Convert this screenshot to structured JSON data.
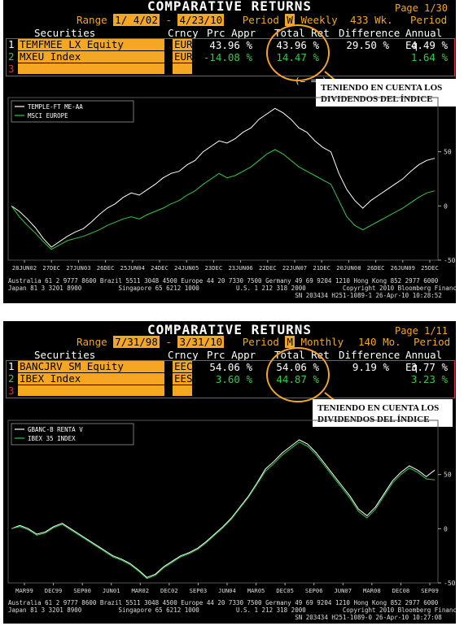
{
  "panels": [
    {
      "title": "COMPARATIVE RETURNS",
      "page": "Page 1/30",
      "range_label": "Range",
      "range_start": "1/ 4/02",
      "range_sep": "-",
      "range_end": "4/23/10",
      "period_label": "Period",
      "period_code": "W",
      "period_name": "Weekly",
      "period_count": "433 Wk.",
      "period_word": "Period",
      "headers": {
        "securities": "Securities",
        "crncy": "Crncy",
        "prc_appr": "Prc Appr",
        "total_ret": "Total Ret",
        "difference": "Difference",
        "annual_eq": "Annual Eq"
      },
      "rows": [
        {
          "num": "1",
          "security": "TEMFMEE LX Equity",
          "crncy": "EUR",
          "prc_appr": "43.96 %",
          "total_ret": "43.96 %",
          "difference": "29.50 %",
          "annual_eq": "4.49 %"
        },
        {
          "num": "2",
          "security": "MXEU Index",
          "crncy": "EUR",
          "prc_appr": "-14.08 %",
          "total_ret": "14.47 %",
          "difference": "",
          "annual_eq": "1.64 %"
        },
        {
          "num": "3",
          "security": "",
          "crncy": "",
          "prc_appr": "",
          "total_ret": "",
          "difference": "",
          "annual_eq": ""
        }
      ],
      "eq_note": "(= = )",
      "annotation": "TENIENDO EN CUENTA LOS DIVIDENDOS DEL ÍNDICE",
      "footer_lines": [
        "Australia 61 2 9777 8600 Brazil 5511 3048 4500 Europe 44 20 7330 7500 Germany 49 69 9204 1210 Hong Kong 852 2977 6000",
        "Japan 81 3 3201 8900          Singapore 65 6212 1000          U.S. 1 212 318 2000          Copyright 2010 Bloomberg Finance L.P.",
        "                                                                              SN 203434 H251-1089-1 26-Apr-10 10:28:52"
      ]
    },
    {
      "title": "COMPARATIVE RETURNS",
      "page": "Page 1/11",
      "range_label": "Range",
      "range_start": "7/31/98",
      "range_sep": "-",
      "range_end": "3/31/10",
      "period_label": "Period",
      "period_code": "M",
      "period_name": "Monthly",
      "period_count": "140 Mo.",
      "period_word": "Period",
      "headers": {
        "securities": "Securities",
        "crncy": "Crncy",
        "prc_appr": "Prc Appr",
        "total_ret": "Total Ret",
        "difference": "Difference",
        "annual_eq": "Annual Eq"
      },
      "rows": [
        {
          "num": "1",
          "security": "BANCJRV SM Equity",
          "crncy": "EEC",
          "prc_appr": "54.06 %",
          "total_ret": "54.06 %",
          "difference": "9.19 %",
          "annual_eq": "3.77 %"
        },
        {
          "num": "2",
          "security": "IBEX Index",
          "crncy": "EES",
          "prc_appr": "3.60 %",
          "total_ret": "44.87 %",
          "difference": "",
          "annual_eq": "3.23 %"
        },
        {
          "num": "3",
          "security": "",
          "crncy": "",
          "prc_appr": "",
          "total_ret": "",
          "difference": "",
          "annual_eq": ""
        }
      ],
      "eq_note": "",
      "annotation": "TENIENDO EN CUENTA LOS DIVIDENDOS DEL ÍNDICE",
      "footer_lines": [
        "Australia 61 2 9777 8600 Brazil 5511 3048 4500 Europe 44 20 7330 7500 Germany 49 69 9204 1210 Hong Kong 852 2977 6000",
        "Japan 81 3 3201 8900          Singapore 65 6212 1000          U.S. 1 212 318 2000          Copyright 2010 Bloomberg Finance L.P.",
        "                                                                              SN 203434 H251-1089-0 26-Apr-10 10:27:08"
      ]
    }
  ],
  "colors": {
    "background": "#000000",
    "accent": "#f5a623",
    "series_1": "#ffffff",
    "series_2": "#2ecc40",
    "highlight_circle": "#f5a623",
    "arrow": "#f5a623"
  },
  "chart_data": [
    {
      "type": "line",
      "x_ticks": [
        "28JUN02",
        "27DEC",
        "27JUN03",
        "26DEC",
        "25JUN04",
        "24DEC",
        "24JUN05",
        "23DEC",
        "23JUN06",
        "22DEC",
        "22JUN07",
        "21DEC",
        "20JUN08",
        "26DEC",
        "26JUN09",
        "25DEC"
      ],
      "ylim": [
        -50,
        100
      ],
      "y_ticks": [
        -50,
        0,
        50
      ],
      "legend_position": "top-left",
      "series": [
        {
          "name": "TEMPLE-FT ME-AA",
          "color": "#ffffff",
          "values": [
            0,
            -5,
            -12,
            -20,
            -30,
            -38,
            -33,
            -28,
            -24,
            -21,
            -15,
            -8,
            -2,
            2,
            8,
            12,
            10,
            15,
            20,
            26,
            30,
            32,
            38,
            42,
            50,
            55,
            60,
            58,
            62,
            68,
            72,
            80,
            85,
            90,
            86,
            80,
            72,
            68,
            60,
            54,
            50,
            30,
            15,
            5,
            -2,
            5,
            10,
            15,
            20,
            25,
            32,
            38,
            42,
            44
          ]
        },
        {
          "name": "MSCI EUROPE",
          "color": "#2ecc40",
          "values": [
            0,
            -10,
            -18,
            -25,
            -33,
            -40,
            -36,
            -32,
            -30,
            -28,
            -25,
            -22,
            -18,
            -15,
            -12,
            -10,
            -12,
            -8,
            -5,
            -2,
            2,
            5,
            10,
            14,
            20,
            25,
            30,
            26,
            28,
            32,
            36,
            42,
            48,
            52,
            48,
            42,
            36,
            32,
            28,
            24,
            20,
            5,
            -10,
            -18,
            -22,
            -18,
            -14,
            -10,
            -6,
            -2,
            3,
            8,
            12,
            14
          ]
        }
      ]
    },
    {
      "type": "line",
      "x_ticks": [
        "MAR99",
        "DEC99",
        "SEP00",
        "JUN01",
        "MAR02",
        "DEC02",
        "SEP03",
        "JUN04",
        "MAR05",
        "DEC05",
        "SEP06",
        "JUN07",
        "MAR08",
        "DEC08",
        "SEP09"
      ],
      "ylim": [
        -50,
        100
      ],
      "y_ticks": [
        -50,
        0,
        50
      ],
      "legend_position": "top-left",
      "series": [
        {
          "name": "GBANC-B RENTA V",
          "color": "#ffffff",
          "values": [
            0,
            3,
            0,
            -5,
            -3,
            2,
            5,
            0,
            -5,
            -10,
            -15,
            -20,
            -25,
            -28,
            -32,
            -38,
            -45,
            -42,
            -35,
            -30,
            -25,
            -22,
            -18,
            -12,
            -5,
            2,
            10,
            20,
            30,
            42,
            55,
            62,
            70,
            76,
            82,
            78,
            70,
            60,
            50,
            40,
            30,
            18,
            12,
            20,
            32,
            44,
            52,
            58,
            54,
            48,
            54
          ]
        },
        {
          "name": "IBEX 35 INDEX",
          "color": "#2ecc40",
          "values": [
            0,
            2,
            -1,
            -6,
            -4,
            1,
            4,
            -1,
            -6,
            -11,
            -16,
            -21,
            -26,
            -29,
            -33,
            -39,
            -46,
            -43,
            -36,
            -31,
            -26,
            -23,
            -19,
            -13,
            -6,
            1,
            9,
            19,
            29,
            41,
            53,
            60,
            68,
            74,
            80,
            76,
            68,
            58,
            48,
            38,
            28,
            16,
            10,
            18,
            30,
            42,
            50,
            56,
            52,
            46,
            45
          ]
        }
      ]
    }
  ]
}
